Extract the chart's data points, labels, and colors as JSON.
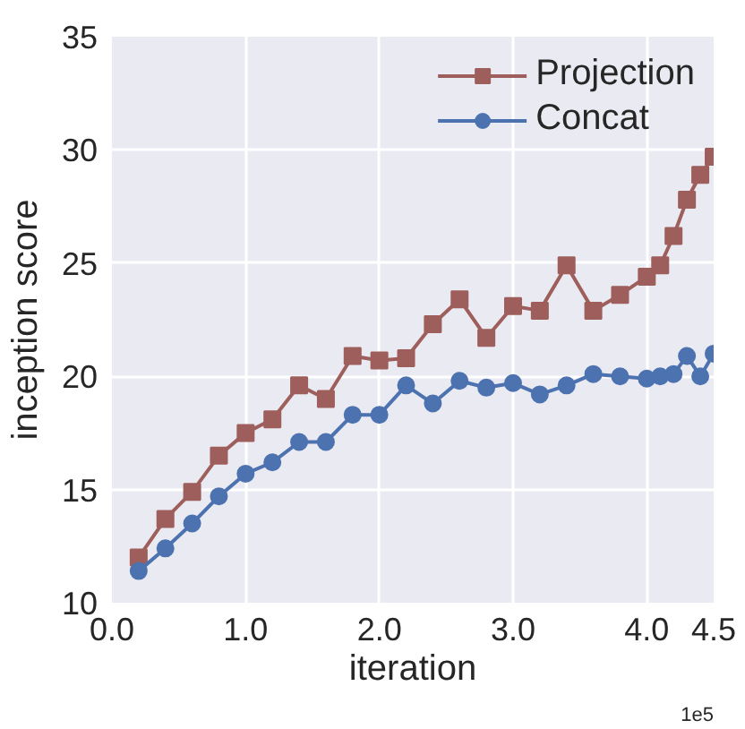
{
  "chart_data": {
    "type": "line",
    "xlabel": "iteration",
    "ylabel": "inception score",
    "x": [
      0.2,
      0.4,
      0.6,
      0.8,
      1.0,
      1.2,
      1.4,
      1.6,
      1.8,
      2.0,
      2.2,
      2.4,
      2.6,
      2.8,
      3.0,
      3.2,
      3.4,
      3.6,
      3.8,
      4.0,
      4.1,
      4.2,
      4.3,
      4.4,
      4.5
    ],
    "series": [
      {
        "name": "Projection",
        "color": "#9e5f5c",
        "marker": "square",
        "values": [
          12.0,
          13.7,
          14.9,
          16.5,
          17.5,
          18.1,
          19.6,
          19.0,
          20.9,
          20.7,
          20.8,
          22.3,
          23.4,
          21.7,
          23.1,
          22.9,
          24.9,
          22.9,
          23.6,
          24.4,
          24.9,
          26.2,
          27.8,
          28.9,
          29.7
        ]
      },
      {
        "name": "Concat",
        "color": "#4c72b0",
        "marker": "circle",
        "values": [
          11.4,
          12.4,
          13.5,
          14.7,
          15.7,
          16.2,
          17.1,
          17.1,
          18.3,
          18.3,
          19.6,
          18.8,
          19.8,
          19.5,
          19.7,
          19.2,
          19.6,
          20.1,
          20.0,
          19.9,
          20.0,
          20.1,
          20.9,
          20.0,
          21.0
        ]
      }
    ],
    "xlim": [
      0,
      4.5
    ],
    "ylim": [
      10,
      35
    ],
    "xticks": [
      {
        "value": 0,
        "label": "0.0"
      },
      {
        "value": 1,
        "label": "1.0"
      },
      {
        "value": 2,
        "label": "2.0"
      },
      {
        "value": 3,
        "label": "3.0"
      },
      {
        "value": 4,
        "label": "4.0"
      },
      {
        "value": 4.5,
        "label": "4.5"
      }
    ],
    "yticks": [
      10,
      15,
      20,
      25,
      30,
      35
    ],
    "annotations": [
      "1e5"
    ],
    "grid": true,
    "legend": "top right",
    "line_style": "solid"
  }
}
